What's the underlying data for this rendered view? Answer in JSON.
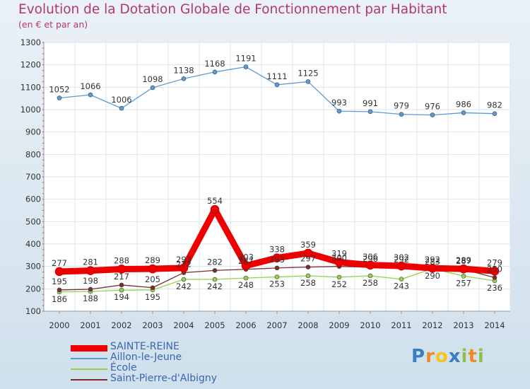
{
  "title": "Evolution de la Dotation Globale de Fonctionnement par Habitant",
  "subtitle": "(en € et par an)",
  "logo": {
    "letters": [
      "P",
      "r",
      "o",
      "x",
      "i",
      "t",
      "i"
    ],
    "colors": [
      "#3a7dc4",
      "#f08a24",
      "#f5c51f",
      "#3a7dc4",
      "#8bc34a",
      "#f08a24",
      "#8bc34a"
    ]
  },
  "chart_data": {
    "type": "line",
    "title": "Evolution de la Dotation Globale de Fonctionnement par Habitant",
    "subtitle": "(en € et par an)",
    "xlabel": "",
    "ylabel": "",
    "ylim": [
      100,
      1300
    ],
    "yticks": [
      100,
      200,
      300,
      400,
      500,
      600,
      700,
      800,
      900,
      1000,
      1100,
      1200,
      1300
    ],
    "x": [
      "2000",
      "2001",
      "2002",
      "2003",
      "2004",
      "2005",
      "2006",
      "2007",
      "2008",
      "2009",
      "2010",
      "2011",
      "2012",
      "2013",
      "2014"
    ],
    "series": [
      {
        "name": "SAINTE-REINE",
        "color": "#ee0000",
        "values": [
          277,
          281,
          288,
          289,
          293,
          554,
          303,
          338,
          359,
          319,
          306,
          302,
          292,
          289,
          279
        ]
      },
      {
        "name": "Aillon-le-Jeune",
        "color": "#5b9bd5",
        "values": [
          1052,
          1066,
          1006,
          1098,
          1138,
          1168,
          1191,
          1111,
          1125,
          993,
          991,
          979,
          976,
          986,
          982
        ]
      },
      {
        "name": "École",
        "color": "#92d050",
        "values": [
          186,
          188,
          194,
          195,
          242,
          242,
          248,
          253,
          258,
          252,
          258,
          243,
          290,
          257,
          236
        ]
      },
      {
        "name": "Saint-Pierre-d'Albigny",
        "color": "#7b2c2c",
        "values": [
          195,
          198,
          217,
          205,
          272,
          282,
          287,
          293,
          297,
          300,
          296,
          292,
          283,
          287,
          250
        ]
      }
    ],
    "legend_position": "bottom-left"
  }
}
